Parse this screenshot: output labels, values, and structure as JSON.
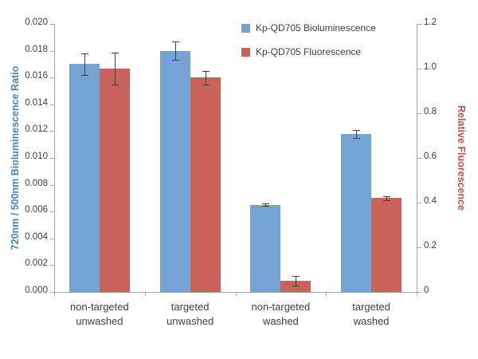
{
  "chart_data": {
    "type": "bar",
    "title": "",
    "categories": [
      [
        "non-targeted",
        "unwashed"
      ],
      [
        "targeted",
        "unwashed"
      ],
      [
        "non-targeted",
        "washed"
      ],
      [
        "targeted",
        "washed"
      ]
    ],
    "series": [
      {
        "name": "Kp-QD705 Bioluminescence",
        "axis": "left",
        "color": "#74a3d4",
        "values": [
          0.017,
          0.018,
          0.0065,
          0.0118
        ],
        "errors": [
          0.0008,
          0.0007,
          0.0001,
          0.0003
        ]
      },
      {
        "name": "Kp-QD705 Fluorescence",
        "axis": "right",
        "color": "#c8625a",
        "values": [
          1.0,
          0.96,
          0.05,
          0.42
        ],
        "errors": [
          0.07,
          0.03,
          0.02,
          0.01
        ]
      }
    ],
    "left_axis": {
      "label": "720nm / 500nm Bioluminescence Ratio",
      "min": 0,
      "max": 0.02,
      "step": 0.002,
      "decimals": 3,
      "zero_label": "0.000",
      "color": "#4f81bd"
    },
    "right_axis": {
      "label": "Relative Fluorescence",
      "min": 0,
      "max": 1.2,
      "step": 0.2,
      "decimals": 1,
      "zero_label": "0",
      "color": "#c0504d"
    },
    "legend_position": "top-right-inside",
    "grid": false,
    "error_bar_color": "#404040",
    "axis_line_color": "#a6a6a6",
    "tick_label_color": "#404040"
  }
}
